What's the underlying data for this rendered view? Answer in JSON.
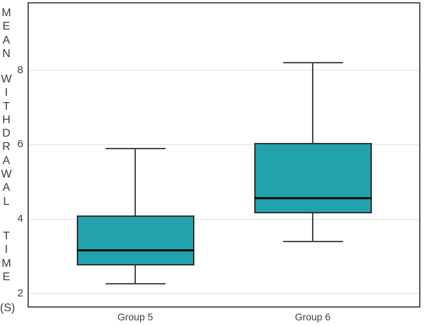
{
  "chart_data": {
    "type": "boxplot",
    "title": "",
    "ylabel": "MEAN WITHDRAWAL TIME (S)",
    "ylabel_words": [
      "MEAN",
      "WITHDRAWAL",
      "TIME"
    ],
    "ylabel_unit": "(S)",
    "xlabel": "",
    "categories": [
      "Group 5",
      "Group 6"
    ],
    "series": [
      {
        "name": "Group 5",
        "whisker_low": 2.25,
        "q1": 2.75,
        "median": 3.15,
        "q3": 4.1,
        "whisker_high": 5.9
      },
      {
        "name": "Group 6",
        "whisker_low": 3.4,
        "q1": 4.15,
        "median": 4.55,
        "q3": 6.05,
        "whisker_high": 8.2
      }
    ],
    "yticks": [
      2,
      4,
      6,
      8
    ],
    "ylim": [
      1.65,
      9.8
    ],
    "grid": true,
    "legend": false,
    "colors": {
      "box_fill": "#21a2ac",
      "box_border": "#333333",
      "median": "#0d0d0d",
      "whisker": "#4a4a4a",
      "gridline": "#e3e3e3",
      "plot_border": "#5e5e5e",
      "text": "#3d3d3d"
    }
  }
}
